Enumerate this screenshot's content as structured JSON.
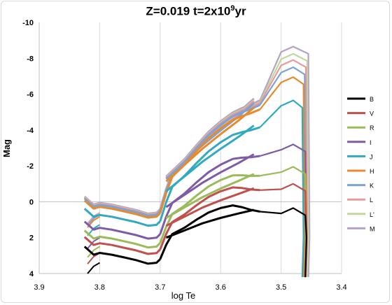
{
  "chart_data": {
    "type": "line",
    "title_prefix": "Z=0.019   t=2x10",
    "title_exp": "9",
    "title_suffix": "yr",
    "xlabel": "log Te",
    "ylabel": "Mag",
    "xlim": [
      3.9,
      3.4
    ],
    "ylim": [
      4,
      -10
    ],
    "x_ticks": [
      3.9,
      3.8,
      3.7,
      3.6,
      3.5,
      3.4
    ],
    "x_tick_labels": [
      "3.9",
      "3.8",
      "3.7",
      "3.6",
      "3.5",
      "3.4"
    ],
    "y_ticks": [
      -10,
      -8,
      -6,
      -4,
      -2,
      0,
      2,
      4
    ],
    "y_tick_labels": [
      "-10",
      "-8",
      "-6",
      "-4",
      "-2",
      "0",
      "2",
      "4"
    ],
    "grid": "vertical",
    "legend_position": "right",
    "series": [
      {
        "name": "B",
        "color": "#000000",
        "offset": 0.0
      },
      {
        "name": "V",
        "color": "#c0504d",
        "offset": -1.2
      },
      {
        "name": "R",
        "color": "#9bbb59",
        "offset": -2.0
      },
      {
        "name": "I",
        "color": "#7f5ba6",
        "offset": -3.1
      },
      {
        "name": "J",
        "color": "#31a9c1",
        "offset": -4.7
      },
      {
        "name": "H",
        "color": "#e68a2e",
        "offset": -5.7
      },
      {
        "name": "K",
        "color": "#7ca3d8",
        "offset": -5.95
      },
      {
        "name": "L",
        "color": "#e89a9a",
        "offset": -6.05
      },
      {
        "name": "L'",
        "color": "#c3d69b",
        "offset": -6.1
      },
      {
        "name": "M",
        "color": "#b3a2c7",
        "offset": -6.2
      }
    ],
    "base_track": {
      "ms_x": [
        3.825,
        3.81,
        3.8,
        3.78,
        3.76,
        3.74,
        3.72,
        3.706,
        3.7
      ],
      "ms_y": [
        2.5,
        2.95,
        2.85,
        2.95,
        3.1,
        3.25,
        3.45,
        3.4,
        3.2
      ],
      "sg_x": [
        3.7,
        3.69,
        3.68,
        3.66,
        3.64,
        3.62,
        3.6,
        3.58,
        3.565,
        3.55,
        3.535
      ],
      "sg_y": [
        3.2,
        2.4,
        1.8,
        1.45,
        1.0,
        0.6,
        0.35,
        0.2,
        0.3,
        0.45,
        0.55
      ],
      "rgb_x": [
        3.69,
        3.66,
        3.63,
        3.6,
        3.57,
        3.545
      ],
      "rgb_y": [
        2.0,
        1.6,
        1.2,
        0.9,
        0.65,
        0.45
      ],
      "faint_x": [
        3.82,
        3.81,
        3.8
      ],
      "faint_y": [
        4.0,
        3.6,
        3.4
      ]
    }
  }
}
